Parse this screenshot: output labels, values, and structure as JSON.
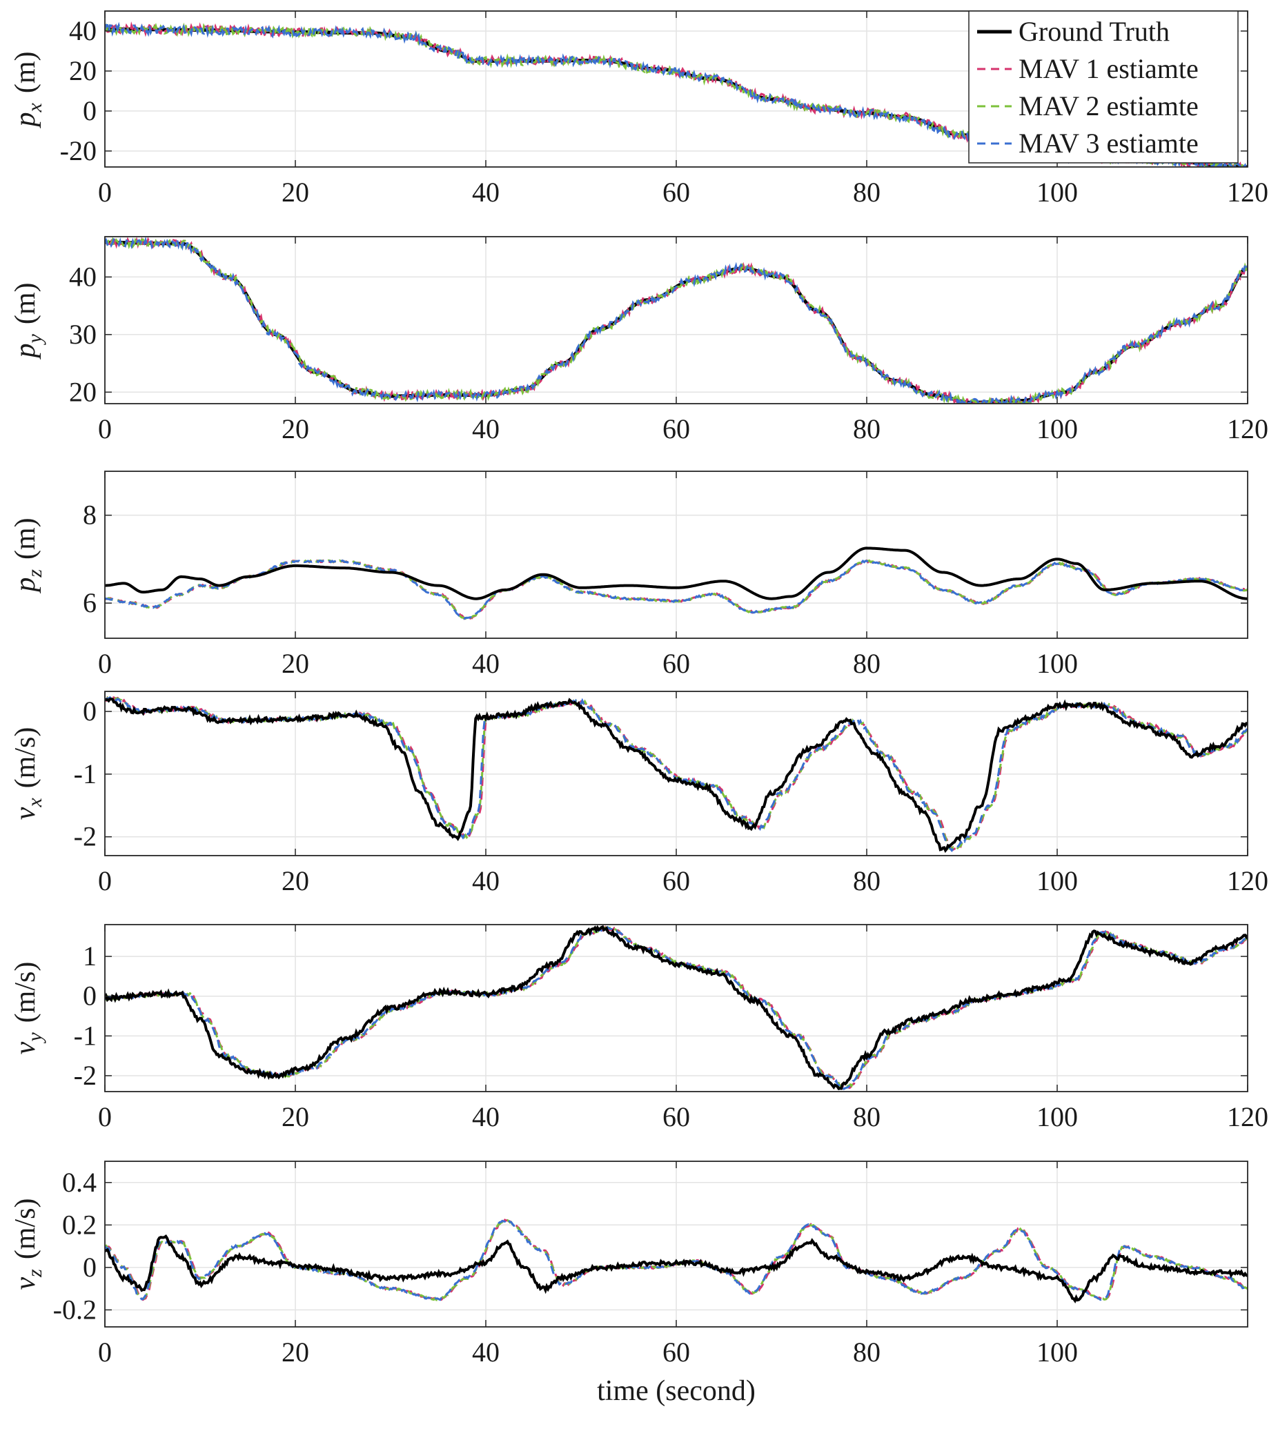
{
  "chart_data": [
    {
      "type": "line",
      "ylabel": "p_x (m)",
      "ylabel_var": "p",
      "ylabel_sub": "x",
      "ylabel_unit": "(m)",
      "xlim": [
        0,
        120
      ],
      "ylim": [
        -28,
        50
      ],
      "xticks": [
        0,
        20,
        40,
        60,
        80,
        100,
        120
      ],
      "xtick_labels": [
        "0",
        "20",
        "40",
        "60",
        "80",
        "100",
        "120"
      ],
      "yticks": [
        40,
        20,
        0,
        -20
      ],
      "ytick_labels": [
        "40",
        "20",
        "0",
        "-20"
      ],
      "grid": true,
      "truth_knots": [
        [
          0,
          41
        ],
        [
          10,
          40.5
        ],
        [
          20,
          39.5
        ],
        [
          28,
          39
        ],
        [
          32,
          37
        ],
        [
          36,
          30
        ],
        [
          39,
          25
        ],
        [
          44,
          25
        ],
        [
          52,
          25.3
        ],
        [
          58,
          21
        ],
        [
          64,
          16
        ],
        [
          70,
          6
        ],
        [
          75,
          1
        ],
        [
          80,
          -1
        ],
        [
          84,
          -3
        ],
        [
          90,
          -12
        ],
        [
          96,
          -20
        ],
        [
          102,
          -23
        ],
        [
          110,
          -24.5
        ],
        [
          120,
          -28
        ]
      ],
      "estimate_noise": 0.15,
      "estimate_lag": 0,
      "legend": {
        "position": "top-right",
        "entries": [
          "Ground Truth",
          "MAV 1 estiamte",
          "MAV 2 estiamte",
          "MAV 3 estiamte"
        ]
      }
    },
    {
      "type": "line",
      "ylabel": "p_y (m)",
      "ylabel_var": "p",
      "ylabel_sub": "y",
      "ylabel_unit": "(m)",
      "xlim": [
        0,
        120
      ],
      "ylim": [
        18,
        47
      ],
      "xticks": [
        0,
        20,
        40,
        60,
        80,
        100,
        120
      ],
      "xtick_labels": [
        "0",
        "20",
        "40",
        "60",
        "80",
        "100",
        "120"
      ],
      "yticks": [
        40,
        30,
        20
      ],
      "ytick_labels": [
        "40",
        "30",
        "20"
      ],
      "grid": true,
      "truth_knots": [
        [
          0,
          46
        ],
        [
          8,
          45.8
        ],
        [
          13,
          40
        ],
        [
          18,
          30
        ],
        [
          22,
          23.5
        ],
        [
          27,
          20
        ],
        [
          30,
          19.3
        ],
        [
          35,
          19.5
        ],
        [
          40,
          19.5
        ],
        [
          44,
          20.5
        ],
        [
          48,
          25
        ],
        [
          52,
          31
        ],
        [
          57,
          36
        ],
        [
          62,
          39.5
        ],
        [
          67,
          41.5
        ],
        [
          71,
          40
        ],
        [
          75,
          34
        ],
        [
          79,
          26
        ],
        [
          83,
          22
        ],
        [
          87,
          19.5
        ],
        [
          91,
          18.2
        ],
        [
          96,
          18.5
        ],
        [
          101,
          20
        ],
        [
          104,
          23.5
        ],
        [
          108,
          28
        ],
        [
          113,
          32
        ],
        [
          117,
          35
        ],
        [
          120,
          41.5
        ]
      ],
      "estimate_noise": 0.12,
      "estimate_lag": 0
    },
    {
      "type": "line",
      "ylabel": "p_z (m)",
      "ylabel_var": "p",
      "ylabel_sub": "z",
      "ylabel_unit": "(m)",
      "xlim": [
        0,
        120
      ],
      "ylim": [
        5.2,
        9
      ],
      "xticks": [
        0,
        20,
        40,
        60,
        80,
        100
      ],
      "xtick_labels": [
        "0",
        "20",
        "40",
        "60",
        "80",
        "100"
      ],
      "yticks": [
        8,
        6
      ],
      "ytick_labels": [
        "8",
        "6"
      ],
      "grid": true,
      "truth_knots": [
        [
          0,
          6.4
        ],
        [
          2,
          6.45
        ],
        [
          4,
          6.25
        ],
        [
          6,
          6.3
        ],
        [
          8,
          6.6
        ],
        [
          10,
          6.55
        ],
        [
          12,
          6.4
        ],
        [
          15,
          6.6
        ],
        [
          20,
          6.85
        ],
        [
          25,
          6.8
        ],
        [
          30,
          6.7
        ],
        [
          35,
          6.4
        ],
        [
          39,
          6.1
        ],
        [
          42,
          6.3
        ],
        [
          46,
          6.65
        ],
        [
          50,
          6.35
        ],
        [
          55,
          6.4
        ],
        [
          60,
          6.35
        ],
        [
          65,
          6.5
        ],
        [
          70,
          6.1
        ],
        [
          72,
          6.15
        ],
        [
          76,
          6.7
        ],
        [
          80,
          7.25
        ],
        [
          84,
          7.2
        ],
        [
          88,
          6.7
        ],
        [
          92,
          6.4
        ],
        [
          96,
          6.55
        ],
        [
          100,
          7.0
        ],
        [
          102,
          6.9
        ],
        [
          105,
          6.3
        ],
        [
          110,
          6.45
        ],
        [
          115,
          6.5
        ],
        [
          120,
          6.1
        ]
      ],
      "estimate_knots": [
        [
          0,
          6.1
        ],
        [
          3,
          6.0
        ],
        [
          5,
          5.9
        ],
        [
          8,
          6.2
        ],
        [
          10,
          6.4
        ],
        [
          12,
          6.35
        ],
        [
          15,
          6.6
        ],
        [
          20,
          6.95
        ],
        [
          25,
          6.95
        ],
        [
          30,
          6.75
        ],
        [
          35,
          6.2
        ],
        [
          38,
          5.65
        ],
        [
          42,
          6.3
        ],
        [
          46,
          6.6
        ],
        [
          50,
          6.25
        ],
        [
          55,
          6.1
        ],
        [
          60,
          6.05
        ],
        [
          64,
          6.2
        ],
        [
          68,
          5.8
        ],
        [
          72,
          5.9
        ],
        [
          76,
          6.5
        ],
        [
          80,
          6.95
        ],
        [
          84,
          6.8
        ],
        [
          88,
          6.3
        ],
        [
          92,
          6.0
        ],
        [
          96,
          6.4
        ],
        [
          100,
          6.9
        ],
        [
          103,
          6.75
        ],
        [
          106,
          6.2
        ],
        [
          110,
          6.45
        ],
        [
          115,
          6.55
        ],
        [
          120,
          6.3
        ]
      ],
      "estimate_noise": 0.03,
      "estimate_lag": 0
    },
    {
      "type": "line",
      "ylabel": "v_x (m/s)",
      "ylabel_var": "v",
      "ylabel_sub": "x",
      "ylabel_unit": "(m/s)",
      "xlim": [
        0,
        120
      ],
      "ylim": [
        -2.3,
        0.32
      ],
      "xticks": [
        0,
        20,
        40,
        60,
        80,
        100,
        120
      ],
      "xtick_labels": [
        "0",
        "20",
        "40",
        "60",
        "80",
        "100",
        "120"
      ],
      "yticks": [
        0,
        -1,
        -2
      ],
      "ytick_labels": [
        "0",
        "-1",
        "-2"
      ],
      "grid": true,
      "truth_knots": [
        [
          0,
          0.2
        ],
        [
          3,
          0
        ],
        [
          8,
          0.05
        ],
        [
          12,
          -0.15
        ],
        [
          20,
          -0.12
        ],
        [
          26,
          -0.05
        ],
        [
          29,
          -0.2
        ],
        [
          31,
          -0.6
        ],
        [
          33,
          -1.3
        ],
        [
          35,
          -1.8
        ],
        [
          37,
          -2.0
        ],
        [
          38.3,
          -1.6
        ],
        [
          39,
          -0.1
        ],
        [
          43,
          -0.05
        ],
        [
          46,
          0.1
        ],
        [
          49,
          0.15
        ],
        [
          52,
          -0.2
        ],
        [
          55,
          -0.6
        ],
        [
          60,
          -1.1
        ],
        [
          63,
          -1.2
        ],
        [
          66,
          -1.7
        ],
        [
          68,
          -1.85
        ],
        [
          70,
          -1.3
        ],
        [
          74,
          -0.6
        ],
        [
          78,
          -0.15
        ],
        [
          81,
          -0.7
        ],
        [
          84,
          -1.3
        ],
        [
          86,
          -1.6
        ],
        [
          88,
          -2.2
        ],
        [
          90,
          -2.0
        ],
        [
          92,
          -1.5
        ],
        [
          94,
          -0.3
        ],
        [
          97,
          -0.1
        ],
        [
          100,
          0.1
        ],
        [
          104,
          0.1
        ],
        [
          108,
          -0.2
        ],
        [
          112,
          -0.4
        ],
        [
          114,
          -0.7
        ],
        [
          117,
          -0.55
        ],
        [
          120,
          -0.2
        ]
      ],
      "estimate_noise": 0.06,
      "estimate_lag": 1.0
    },
    {
      "type": "line",
      "ylabel": "v_y (m/s)",
      "ylabel_var": "v",
      "ylabel_sub": "y",
      "ylabel_unit": "(m/s)",
      "xlim": [
        0,
        120
      ],
      "ylim": [
        -2.4,
        1.8
      ],
      "xticks": [
        0,
        20,
        40,
        60,
        80,
        100,
        120
      ],
      "xtick_labels": [
        "0",
        "20",
        "40",
        "60",
        "80",
        "100",
        "120"
      ],
      "yticks": [
        1,
        0,
        -1,
        -2
      ],
      "ytick_labels": [
        "1",
        "0",
        "-1",
        "-2"
      ],
      "grid": true,
      "truth_knots": [
        [
          0,
          -0.05
        ],
        [
          5,
          0.05
        ],
        [
          8,
          0.05
        ],
        [
          10,
          -0.6
        ],
        [
          12,
          -1.5
        ],
        [
          15,
          -1.9
        ],
        [
          18,
          -2.0
        ],
        [
          21,
          -1.8
        ],
        [
          25,
          -1.1
        ],
        [
          30,
          -0.3
        ],
        [
          35,
          0.1
        ],
        [
          40,
          0.05
        ],
        [
          43,
          0.2
        ],
        [
          47,
          0.8
        ],
        [
          50,
          1.6
        ],
        [
          52,
          1.7
        ],
        [
          56,
          1.2
        ],
        [
          60,
          0.8
        ],
        [
          64,
          0.6
        ],
        [
          68,
          -0.1
        ],
        [
          72,
          -1.0
        ],
        [
          75,
          -2.0
        ],
        [
          77,
          -2.3
        ],
        [
          80,
          -1.5
        ],
        [
          82,
          -0.9
        ],
        [
          85,
          -0.6
        ],
        [
          88,
          -0.4
        ],
        [
          91,
          -0.1
        ],
        [
          95,
          0.05
        ],
        [
          98,
          0.2
        ],
        [
          101,
          0.4
        ],
        [
          104,
          1.6
        ],
        [
          107,
          1.3
        ],
        [
          110,
          1.1
        ],
        [
          114,
          0.85
        ],
        [
          117,
          1.2
        ],
        [
          120,
          1.5
        ]
      ],
      "estimate_noise": 0.05,
      "estimate_lag": 0.8
    },
    {
      "type": "line",
      "ylabel": "v_z (m/s)",
      "ylabel_var": "v",
      "ylabel_sub": "z",
      "ylabel_unit": "(m/s)",
      "xlabel": "time (second)",
      "xlim": [
        0,
        120
      ],
      "ylim": [
        -0.28,
        0.5
      ],
      "xticks": [
        0,
        20,
        40,
        60,
        80,
        100
      ],
      "xtick_labels": [
        "0",
        "20",
        "40",
        "60",
        "80",
        "100"
      ],
      "yticks": [
        0.4,
        0.2,
        0,
        -0.2
      ],
      "ytick_labels": [
        "0.4",
        "0.2",
        "0",
        "-0.2"
      ],
      "grid": true,
      "truth_knots": [
        [
          0,
          0.08
        ],
        [
          2,
          -0.05
        ],
        [
          4,
          -0.1
        ],
        [
          6,
          0.15
        ],
        [
          8,
          0.05
        ],
        [
          10,
          -0.08
        ],
        [
          14,
          0.05
        ],
        [
          18,
          0.02
        ],
        [
          22,
          0.0
        ],
        [
          30,
          -0.05
        ],
        [
          36,
          -0.03
        ],
        [
          40,
          0.02
        ],
        [
          42,
          0.12
        ],
        [
          44,
          0.0
        ],
        [
          46,
          -0.1
        ],
        [
          48,
          -0.05
        ],
        [
          52,
          0.0
        ],
        [
          58,
          0.02
        ],
        [
          62,
          0.02
        ],
        [
          66,
          -0.02
        ],
        [
          70,
          0.0
        ],
        [
          74,
          0.12
        ],
        [
          76,
          0.05
        ],
        [
          80,
          -0.02
        ],
        [
          84,
          -0.05
        ],
        [
          90,
          0.05
        ],
        [
          94,
          0.0
        ],
        [
          100,
          -0.05
        ],
        [
          102,
          -0.15
        ],
        [
          104,
          -0.05
        ],
        [
          106,
          0.05
        ],
        [
          110,
          0.0
        ],
        [
          115,
          -0.02
        ],
        [
          120,
          -0.03
        ]
      ],
      "estimate_knots": [
        [
          0,
          0.1
        ],
        [
          2,
          0.0
        ],
        [
          4,
          -0.15
        ],
        [
          6,
          0.12
        ],
        [
          8,
          0.12
        ],
        [
          10,
          -0.05
        ],
        [
          14,
          0.1
        ],
        [
          17,
          0.16
        ],
        [
          20,
          0.0
        ],
        [
          25,
          -0.03
        ],
        [
          30,
          -0.1
        ],
        [
          35,
          -0.15
        ],
        [
          38,
          -0.05
        ],
        [
          42,
          0.22
        ],
        [
          46,
          0.08
        ],
        [
          48,
          -0.08
        ],
        [
          52,
          0.0
        ],
        [
          58,
          0.0
        ],
        [
          62,
          0.03
        ],
        [
          65,
          -0.02
        ],
        [
          68,
          -0.12
        ],
        [
          71,
          0.05
        ],
        [
          74,
          0.2
        ],
        [
          76,
          0.15
        ],
        [
          78,
          0.0
        ],
        [
          82,
          -0.05
        ],
        [
          86,
          -0.12
        ],
        [
          90,
          -0.05
        ],
        [
          94,
          0.08
        ],
        [
          96,
          0.18
        ],
        [
          99,
          0.0
        ],
        [
          102,
          -0.1
        ],
        [
          105,
          -0.15
        ],
        [
          107,
          0.1
        ],
        [
          110,
          0.05
        ],
        [
          114,
          0.0
        ],
        [
          118,
          -0.05
        ],
        [
          120,
          -0.1
        ]
      ],
      "estimate_noise": 0.035,
      "estimate_lag": 0
    }
  ],
  "styles": {
    "truth_color": "#000000",
    "mav1_color": "#d6336c",
    "mav2_color": "#7cc13a",
    "mav3_color": "#3a6fd1",
    "grid_color": "#e3e3e3",
    "axis_color": "#262626"
  }
}
